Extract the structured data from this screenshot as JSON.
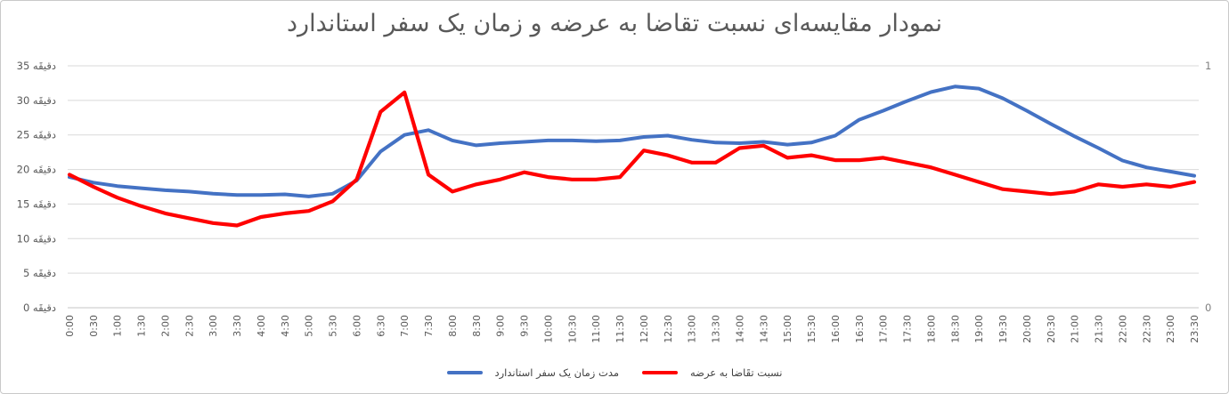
{
  "title": "نمودار مقایسه‌ای نسبت تقاضا به عرضه و زمان یک سفر استاندارد",
  "chart_data": {
    "type": "line",
    "title": "نمودار مقایسه‌ای نسبت تقاضا به عرضه و زمان یک سفر استاندارد",
    "categories": [
      "0:00",
      "0:30",
      "1:00",
      "1:30",
      "2:00",
      "2:30",
      "3:00",
      "3:30",
      "4:00",
      "4:30",
      "5:00",
      "5:30",
      "6:00",
      "6:30",
      "7:00",
      "7:30",
      "8:00",
      "8:30",
      "9:00",
      "9:30",
      "10:00",
      "10:30",
      "11:00",
      "11:30",
      "12:00",
      "12:30",
      "13:00",
      "13:30",
      "14:00",
      "14:30",
      "15:00",
      "15:30",
      "16:00",
      "16:30",
      "17:00",
      "17:30",
      "18:00",
      "18:30",
      "19:00",
      "19:30",
      "20:00",
      "20:30",
      "21:00",
      "21:30",
      "22:00",
      "22:30",
      "23:00",
      "23:30"
    ],
    "series": [
      {
        "name": "مدت زمان یک سفر استاندارد",
        "color": "#4472C4",
        "axis": "left",
        "unit": "minutes",
        "values": [
          18.9,
          18.1,
          17.6,
          17.3,
          17.0,
          16.8,
          16.5,
          16.3,
          16.3,
          16.4,
          16.1,
          16.5,
          18.4,
          22.6,
          25.0,
          25.7,
          24.2,
          23.5,
          23.8,
          24.0,
          24.2,
          24.2,
          24.1,
          24.2,
          24.7,
          24.9,
          24.3,
          23.9,
          23.8,
          24.0,
          23.6,
          23.9,
          24.9,
          27.2,
          28.5,
          29.9,
          31.2,
          32.0,
          31.7,
          30.3,
          28.5,
          26.6,
          24.8,
          23.1,
          21.3,
          20.3,
          19.7,
          19.1
        ]
      },
      {
        "name": "نسبت تقَاضا به عرضه",
        "color": "#FF0000",
        "axis": "right",
        "unit": "ratio",
        "values": [
          0.55,
          0.5,
          0.455,
          0.42,
          0.39,
          0.37,
          0.35,
          0.34,
          0.375,
          0.39,
          0.4,
          0.44,
          0.53,
          0.81,
          0.89,
          0.55,
          0.48,
          0.51,
          0.53,
          0.56,
          0.54,
          0.53,
          0.53,
          0.54,
          0.65,
          0.63,
          0.6,
          0.6,
          0.66,
          0.67,
          0.62,
          0.63,
          0.61,
          0.61,
          0.62,
          0.6,
          0.58,
          0.55,
          0.52,
          0.49,
          0.48,
          0.47,
          0.48,
          0.51,
          0.5,
          0.51,
          0.5,
          0.52
        ]
      }
    ],
    "left_axis": {
      "min": 0,
      "max": 35,
      "step": 5,
      "unit": "دقیقَه",
      "tick_labels": [
        "0 دقیقَه",
        "5 دقیقَه",
        "10 دقیقَه",
        "15 دقیقَه",
        "20 دقیقَه",
        "25 دقیقَه",
        "30 دقیقَه",
        "35 دقیقَه"
      ]
    },
    "right_axis": {
      "min": 0,
      "max": 1,
      "tick_labels": [
        "0",
        "1"
      ]
    },
    "grid": true,
    "legend_position": "bottom",
    "x_tick_rotation": -90
  },
  "colors": {
    "grid": "#D9D9D9",
    "axis_line": "#C6C6C6",
    "tick_text": "#595959",
    "right_tick_text": "#7F7F7F",
    "title_text": "#595959",
    "legend_text": "#404040",
    "background": "#FFFFFF",
    "border": "#C9C9C9"
  }
}
